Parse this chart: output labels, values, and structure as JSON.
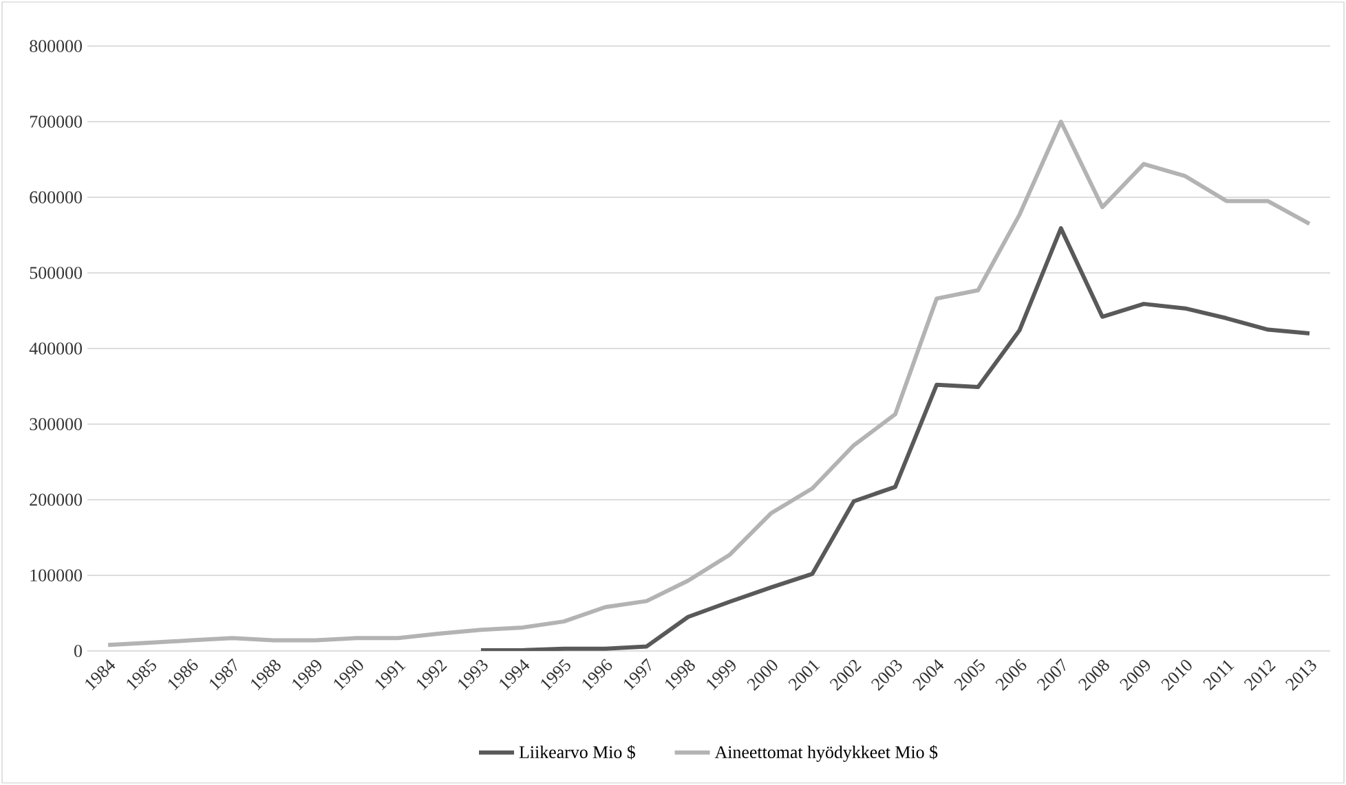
{
  "chart_data": {
    "type": "line",
    "categories": [
      "1984",
      "1985",
      "1986",
      "1987",
      "1988",
      "1989",
      "1990",
      "1991",
      "1992",
      "1993",
      "1994",
      "1995",
      "1996",
      "1997",
      "1998",
      "1999",
      "2000",
      "2001",
      "2002",
      "2003",
      "2004",
      "2005",
      "2006",
      "2007",
      "2008",
      "2009",
      "2010",
      "2011",
      "2012",
      "2013"
    ],
    "series": [
      {
        "name": "Liikearvo Mio $",
        "color": "#595959",
        "values": [
          null,
          null,
          null,
          null,
          null,
          null,
          null,
          null,
          null,
          1000,
          1000,
          3000,
          3000,
          6000,
          45000,
          65000,
          84000,
          102000,
          198000,
          217000,
          352000,
          349000,
          424000,
          559000,
          442000,
          459000,
          453000,
          440000,
          425000,
          420000
        ]
      },
      {
        "name": "Aineettomat hyödykkeet Mio $",
        "color": "#b3b3b3",
        "values": [
          8000,
          11000,
          14000,
          17000,
          14000,
          14000,
          17000,
          17000,
          23000,
          28000,
          31000,
          39000,
          58000,
          66000,
          93000,
          127000,
          182000,
          215000,
          272000,
          313000,
          466000,
          477000,
          577000,
          700000,
          587000,
          644000,
          628000,
          595000,
          595000,
          565000
        ]
      }
    ],
    "ylim": [
      0,
      800000
    ],
    "yticks": [
      0,
      100000,
      200000,
      300000,
      400000,
      500000,
      600000,
      700000,
      800000
    ],
    "grid": "y",
    "legend": "bottom",
    "marker": "none",
    "line_style": "solid"
  }
}
